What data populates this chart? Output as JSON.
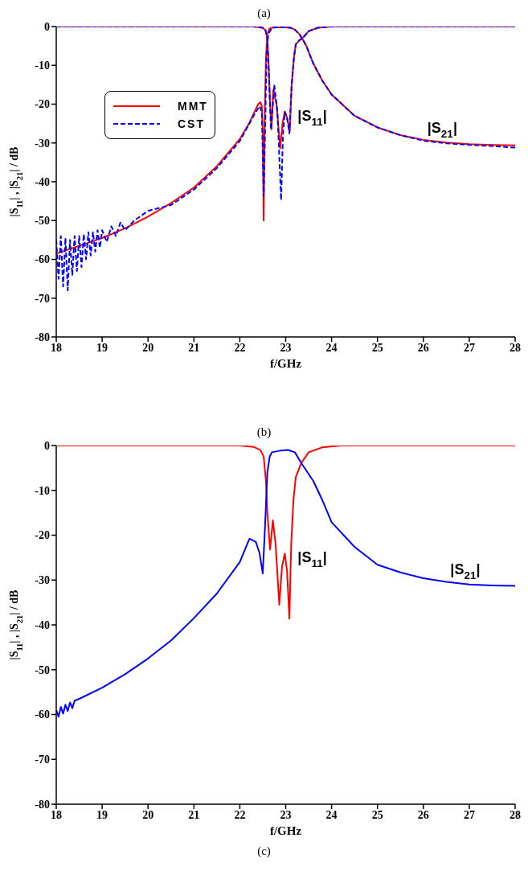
{
  "chart_data": [
    {
      "type": "line",
      "title": "(a)",
      "xlabel": "f/GHz",
      "ylabel": "|S$_{11}$| , |S$_{21}$|  / dB",
      "xlim": [
        18,
        28
      ],
      "xticks": [
        18,
        19,
        20,
        21,
        22,
        23,
        24,
        25,
        26,
        27,
        28
      ],
      "ylim": [
        -80,
        0
      ],
      "yticks": [
        -80,
        -70,
        -60,
        -50,
        -40,
        -30,
        -20,
        -10,
        0
      ],
      "legend": "top left",
      "marker": "none",
      "annotations": [
        "(b)",
        {
          "text": "|S$_{11}$|",
          "x": 22.98,
          "y": -21.9
        },
        {
          "text": "|S$_{21}$|",
          "x": 26,
          "y": -29.2
        }
      ],
      "series": [
        {
          "name": "MMT",
          "color": "#ff0000",
          "line_style": "solid",
          "x": [
            18,
            18.5,
            19,
            19.5,
            20,
            20.5,
            21,
            21.5,
            22,
            22.2,
            22.3,
            22.4,
            22.45,
            22.48,
            22.5,
            22.52,
            22.54,
            22.57,
            22.6,
            22.65,
            22.7,
            22.8,
            23,
            23.1,
            23.2,
            23.3,
            23.36,
            23.45,
            23.6,
            23.8,
            24,
            24.5,
            25,
            25.5,
            26,
            26.5,
            27,
            27.5,
            28
          ],
          "values": [
            -58.5,
            -56.5,
            -54.5,
            -52,
            -49,
            -45.5,
            -41.5,
            -36,
            -29,
            -25,
            -22.5,
            -20,
            -19.5,
            -20.5,
            -27,
            -50,
            -25,
            -8,
            -2,
            -0.5,
            -0.3,
            -0.2,
            -0.2,
            -0.3,
            -0.8,
            -2,
            -3.1,
            -5,
            -9.5,
            -14,
            -17.5,
            -23,
            -26,
            -28,
            -29.2,
            -29.9,
            -30.3,
            -30.5,
            -30.6
          ]
        },
        {
          "color": "#ff0000",
          "line_style": "solid",
          "x": [
            18,
            22.3,
            22.5,
            22.56,
            22.6,
            22.63,
            22.66,
            22.69,
            22.73,
            22.8,
            22.88,
            22.93,
            22.98,
            23.03,
            23.09,
            23.13,
            23.18,
            23.22,
            23.3,
            23.36,
            23.5,
            23.7,
            24,
            28
          ],
          "values": [
            0,
            0,
            -0.3,
            -1,
            -3,
            -10,
            -20,
            -26.5,
            -16.4,
            -20,
            -31.4,
            -25,
            -21.9,
            -23.5,
            -26.9,
            -15,
            -8,
            -4.6,
            -3.5,
            -3.1,
            -1.2,
            -0.3,
            0,
            0
          ]
        },
        {
          "name": "CST",
          "color": "#0000ff",
          "line_style": "dashed",
          "x": [
            18,
            18.05,
            18.1,
            18.15,
            18.2,
            18.25,
            18.3,
            18.35,
            18.4,
            18.45,
            18.5,
            18.55,
            18.6,
            18.65,
            18.7,
            18.75,
            18.8,
            18.85,
            18.9,
            18.95,
            19,
            19.1,
            19.2,
            19.3,
            19.4,
            19.5,
            19.7,
            20,
            20.5,
            21,
            21.5,
            22,
            22.3,
            22.43,
            22.48,
            22.52,
            22.56,
            22.58,
            22.62,
            22.7,
            22.8,
            23,
            23.1,
            23.2,
            23.3,
            23.36,
            23.45,
            23.6,
            23.8,
            24,
            24.5,
            25,
            25.5,
            26,
            26.5,
            27,
            27.5,
            28
          ],
          "values": [
            -55,
            -65,
            -54,
            -67,
            -54.5,
            -68,
            -55,
            -64,
            -54,
            -63,
            -54,
            -62,
            -53.5,
            -60,
            -53,
            -59,
            -53,
            -58,
            -52.5,
            -57,
            -52.5,
            -55.5,
            -51.5,
            -54,
            -50.5,
            -52.5,
            -50,
            -47.5,
            -46,
            -42,
            -36.5,
            -29.5,
            -23,
            -20.5,
            -22,
            -43.7,
            -22,
            -8,
            -2,
            -0.3,
            -0.2,
            -0.2,
            -0.3,
            -0.8,
            -2,
            -3.1,
            -5,
            -9.5,
            -14,
            -17.5,
            -23,
            -26,
            -28,
            -29.4,
            -30.1,
            -30.5,
            -30.8,
            -31.2
          ]
        },
        {
          "color": "#0000ff",
          "line_style": "dashed",
          "x": [
            18,
            22.3,
            22.5,
            22.56,
            22.6,
            22.63,
            22.68,
            22.75,
            22.82,
            22.9,
            22.94,
            22.98,
            23.03,
            23.08,
            23.13,
            23.18,
            23.22,
            23.3,
            23.36,
            23.5,
            23.7,
            24,
            28
          ],
          "values": [
            0,
            0,
            -0.3,
            -1,
            -3,
            -12,
            -26.5,
            -15,
            -22,
            -44.7,
            -28,
            -22,
            -23.5,
            -27.5,
            -15,
            -8,
            -4.6,
            -3.5,
            -3.1,
            -1.2,
            -0.3,
            0,
            0
          ]
        }
      ]
    },
    {
      "type": "line",
      "xlabel": "f/GHz",
      "ylabel": "|S$_{11}$| , |S$_{21}$|  / dB",
      "xlim": [
        18,
        28
      ],
      "xticks": [
        18,
        19,
        20,
        21,
        22,
        23,
        24,
        25,
        26,
        27,
        28
      ],
      "ylim": [
        -80,
        0
      ],
      "yticks": [
        -80,
        -70,
        -60,
        -50,
        -40,
        -30,
        -20,
        -10,
        0
      ],
      "marker": "none",
      "annotations": [
        "(c)",
        {
          "text": "|S$_{11}$|",
          "x": 22.98,
          "y": -24.1
        },
        {
          "text": "|S$_{21}$|",
          "x": 26.5,
          "y": -30.4
        }
      ],
      "series": [
        {
          "color": "#ff0000",
          "line_style": "solid",
          "x": [
            18,
            22,
            22.3,
            22.45,
            22.52,
            22.57,
            22.6,
            22.66,
            22.72,
            22.78,
            22.86,
            22.92,
            22.98,
            23.03,
            23.08,
            23.12,
            23.17,
            23.22,
            23.34,
            23.5,
            23.8,
            24.2,
            28
          ],
          "values": [
            0,
            0,
            -0.3,
            -1,
            -2.5,
            -8,
            -15,
            -23.2,
            -16.7,
            -22,
            -35.5,
            -27,
            -24.1,
            -28,
            -38.6,
            -22,
            -12,
            -7,
            -3.9,
            -1.5,
            -0.4,
            0,
            0
          ]
        },
        {
          "color": "#0000ff",
          "line_style": "solid",
          "x": [
            18,
            18.05,
            18.1,
            18.15,
            18.2,
            18.25,
            18.3,
            18.35,
            18.4,
            18.5,
            19,
            19.5,
            20,
            20.5,
            21,
            21.5,
            22,
            22.21,
            22.35,
            22.43,
            22.5,
            22.55,
            22.6,
            22.65,
            22.7,
            22.9,
            23.05,
            23.2,
            23.34,
            23.6,
            23.8,
            24,
            24.5,
            25,
            25.5,
            26,
            26.5,
            27,
            27.5,
            28
          ],
          "values": [
            -59,
            -60.5,
            -58.3,
            -59.8,
            -57.8,
            -59.2,
            -57.3,
            -58.6,
            -56.9,
            -56.5,
            -54,
            -51,
            -47.5,
            -43.5,
            -38.5,
            -33,
            -26,
            -20.8,
            -21.5,
            -24,
            -28.5,
            -18,
            -6,
            -2.5,
            -1.5,
            -1.1,
            -1,
            -1.5,
            -3.9,
            -7.9,
            -12.2,
            -17.1,
            -22.6,
            -26.6,
            -28.3,
            -29.6,
            -30.4,
            -31,
            -31.2,
            -31.3
          ]
        }
      ]
    }
  ]
}
